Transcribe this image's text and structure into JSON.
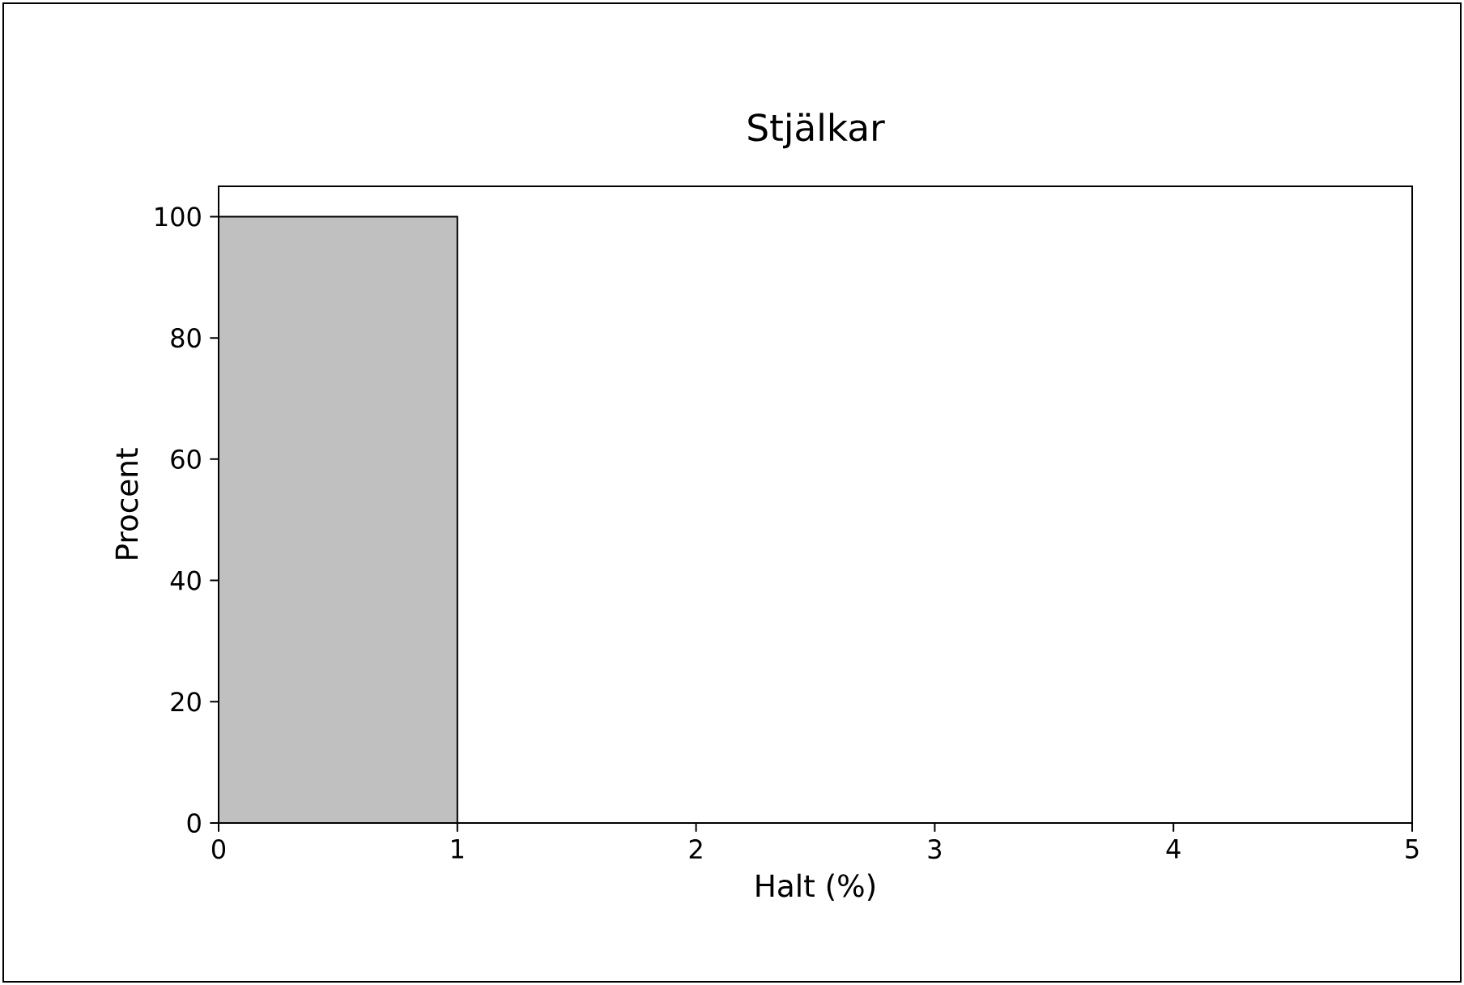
{
  "chart_data": {
    "type": "histogram",
    "title": "Stjälkar",
    "xlabel": "Halt (%)",
    "ylabel": "Procent",
    "bins": [
      0,
      1
    ],
    "values": [
      100
    ],
    "color": "#c0c0c0",
    "xlim": [
      0,
      5
    ],
    "xticks": [
      0,
      1,
      2,
      3,
      4,
      5
    ],
    "ylim": [
      0,
      105
    ],
    "yticks": [
      0,
      20,
      40,
      60,
      80,
      100
    ],
    "grid": false
  }
}
